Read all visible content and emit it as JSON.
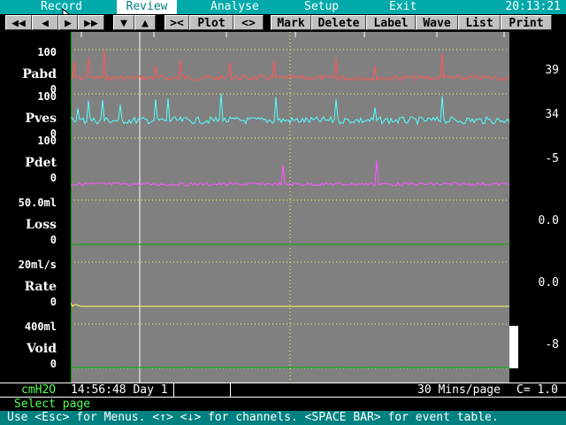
{
  "menu": {
    "items": [
      "Record",
      "Review",
      "Analyse",
      "Setup",
      "Exit"
    ],
    "active": "Review",
    "clock": "20:13:21"
  },
  "toolbar": {
    "nav_buttons": [
      "◀◀",
      "◀",
      "▶",
      "▶▶"
    ],
    "up_down": [
      "▼",
      "▲"
    ],
    "zoom_in": "><",
    "plot": "Plot",
    "zoom_out": "<>",
    "mark": "Mark",
    "delete": "Delete",
    "label": "Label",
    "wave": "Wave",
    "list": "List",
    "print": "Print"
  },
  "channels": [
    {
      "name": "Pabd",
      "scale_top": "100",
      "scale_zero": "0",
      "value": "39",
      "color": "#ff5555"
    },
    {
      "name": "Pves",
      "scale_top": "100",
      "scale_zero": "0",
      "value": "34",
      "color": "#55ffff"
    },
    {
      "name": "Pdet",
      "scale_top": "100",
      "scale_zero": "0",
      "value": "-5",
      "color": "#ff55ff"
    },
    {
      "name": "Loss",
      "scale_top": "50.0ml",
      "scale_zero": "0",
      "value": "0.0",
      "color": "#00aa00"
    },
    {
      "name": "Rate",
      "scale_top": "20ml/s",
      "scale_zero": "0",
      "value": "0.0",
      "color": "#ffff55"
    },
    {
      "name": "Void",
      "scale_top": "400ml",
      "scale_zero": "0",
      "value": "-8",
      "color": "#00aa00"
    }
  ],
  "status": {
    "units": "cmH2O",
    "time": "14:56:48 Day 1",
    "page_span": "30 Mins/page",
    "cursor": "C= 1.0"
  },
  "select_prompt": "Select page",
  "help": "Use <Esc> for Menus. <↑>  <↓> for channels. <SPACE BAR> for event table."
}
